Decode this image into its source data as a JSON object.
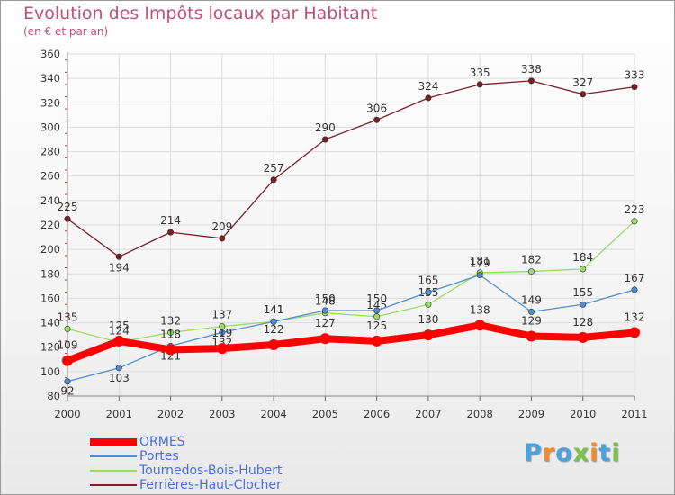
{
  "title": "Evolution des Impôts locaux par Habitant",
  "subtitle": "(en € et par an)",
  "logo": {
    "text": "Proxiti",
    "colors": [
      "#4aa3df",
      "#f08a2a",
      "#4aa3df",
      "#7cc243",
      "#f08a2a",
      "#4aa3df",
      "#7cc243"
    ]
  },
  "chart_data": {
    "type": "line",
    "title": "Evolution des Impôts locaux par Habitant",
    "subtitle": "(en € et par an)",
    "x": [
      2000,
      2001,
      2002,
      2003,
      2004,
      2005,
      2006,
      2007,
      2008,
      2009,
      2010,
      2011
    ],
    "ylim": [
      80,
      360
    ],
    "yticks": [
      80,
      100,
      120,
      140,
      160,
      180,
      200,
      220,
      240,
      260,
      280,
      300,
      320,
      340,
      360
    ],
    "grid": true,
    "legend_position": "bottom-left",
    "series": [
      {
        "name": "Ferrières-Haut-Clocher",
        "color": "#7a1f28",
        "values": [
          225,
          194,
          214,
          209,
          257,
          290,
          306,
          324,
          335,
          338,
          327,
          333
        ]
      },
      {
        "name": "Tournedos-Bois-Hubert",
        "color": "#99dd66",
        "values": [
          135,
          124,
          132,
          137,
          141,
          148,
          145,
          155,
          181,
          182,
          184,
          223
        ]
      },
      {
        "name": "Portes",
        "color": "#4f8fd0",
        "values": [
          92,
          103,
          121,
          132,
          141,
          150,
          150,
          165,
          179,
          149,
          155,
          167
        ]
      },
      {
        "name": "ORMES",
        "color": "#ff0000",
        "values": [
          109,
          125,
          118,
          119,
          122,
          127,
          125,
          130,
          138,
          129,
          128,
          132
        ]
      }
    ]
  }
}
